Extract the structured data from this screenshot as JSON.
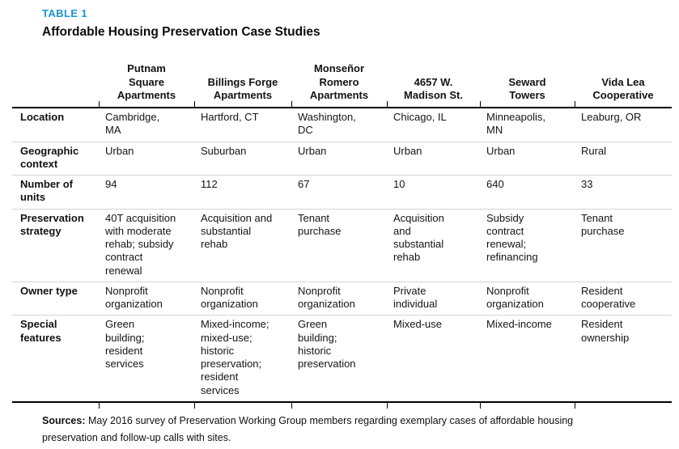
{
  "table_label": "TABLE 1",
  "title": "Affordable Housing Preservation Case Studies",
  "colors": {
    "accent_blue": "#1696d2",
    "rule_black": "#000000",
    "rule_gray": "#d4d4d4",
    "text": "#121212"
  },
  "columns": [
    "Putnam Square Apartments",
    "Billings Forge Apartments",
    "Monseñor Romero Apartments",
    "4657 W. Madison St.",
    "Seward Towers",
    "Vida Lea Cooperative"
  ],
  "rows": [
    {
      "label": "Location",
      "cells": [
        "Cambridge, MA",
        "Hartford, CT",
        "Washington, DC",
        "Chicago, IL",
        "Minneapolis, MN",
        "Leaburg, OR"
      ]
    },
    {
      "label": "Geographic context",
      "cells": [
        "Urban",
        "Suburban",
        "Urban",
        "Urban",
        "Urban",
        "Rural"
      ]
    },
    {
      "label": "Number of units",
      "cells": [
        "94",
        "112",
        "67",
        "10",
        "640",
        "33"
      ]
    },
    {
      "label": "Preservation strategy",
      "cells": [
        "40T acquisition with moderate rehab; subsidy contract renewal",
        "Acquisition and substantial rehab",
        "Tenant purchase",
        "Acquisition and substantial rehab",
        "Subsidy contract renewal; refinancing",
        "Tenant purchase"
      ]
    },
    {
      "label": "Owner type",
      "cells": [
        "Nonprofit organization",
        "Nonprofit organization",
        "Nonprofit organization",
        "Private individual",
        "Nonprofit organization",
        "Resident cooperative"
      ]
    },
    {
      "label": "Special features",
      "cells": [
        "Green building; resident services",
        "Mixed-income; mixed-use; historic preservation; resident services",
        "Green building; historic preservation",
        "Mixed-use",
        "Mixed-income",
        "Resident ownership"
      ]
    }
  ],
  "footnote": {
    "bold_label": "Sources:",
    "text": " May 2016 survey of Preservation Working Group members regarding exemplary cases of affordable housing preservation and follow-up calls with sites."
  }
}
